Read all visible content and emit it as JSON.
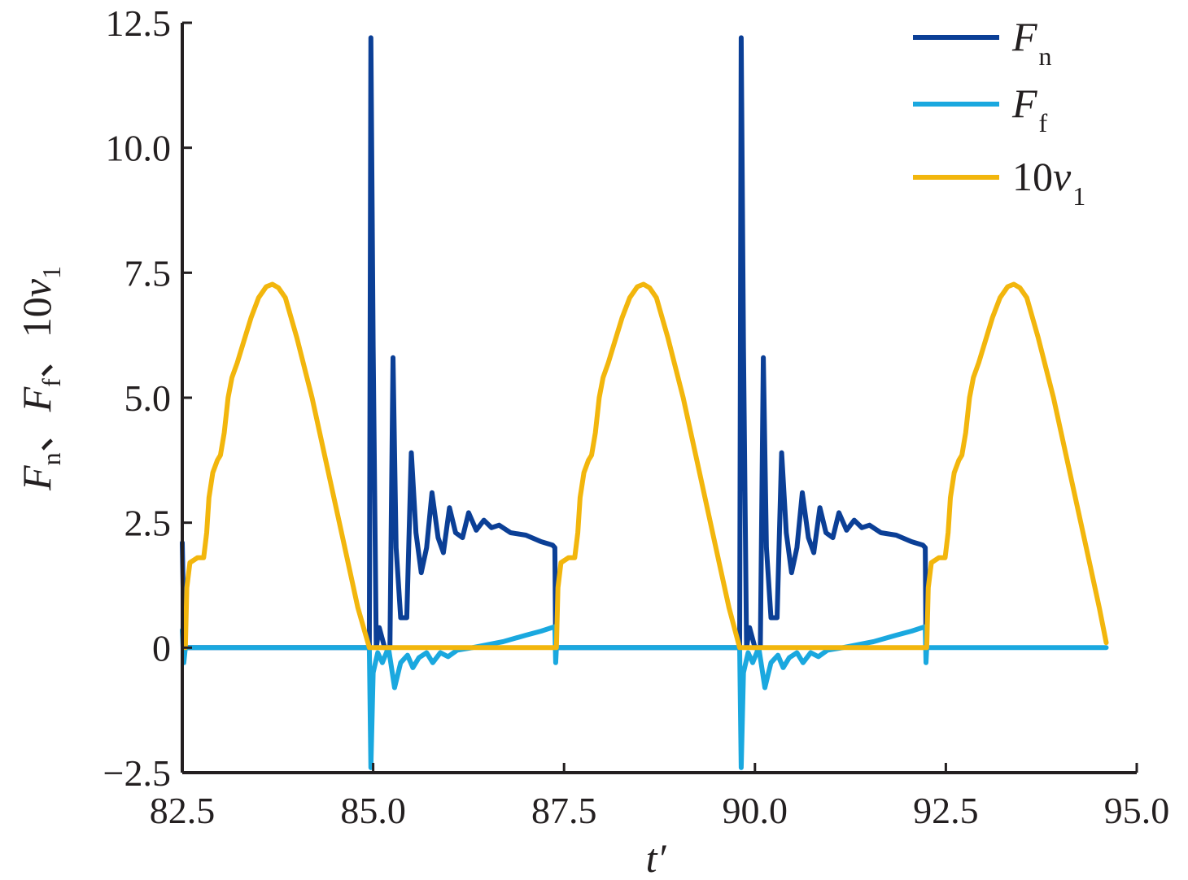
{
  "chart_data": {
    "type": "line",
    "xlabel": "t′",
    "ylabel": {
      "parts": [
        "F",
        "n",
        "、",
        "F",
        "f",
        "、",
        "10",
        "v",
        "1"
      ]
    },
    "xlim": [
      82.5,
      95.0
    ],
    "ylim": [
      -2.5,
      12.5
    ],
    "xticks": [
      "82.5",
      "85.0",
      "87.5",
      "90.0",
      "92.5",
      "95.0"
    ],
    "xtick_values": [
      82.5,
      85.0,
      87.5,
      90.0,
      92.5,
      95.0
    ],
    "yticks": [
      "−2.5",
      "0",
      "2.5",
      "5.0",
      "7.5",
      "10.0",
      "12.5"
    ],
    "ytick_values": [
      -2.5,
      0,
      2.5,
      5.0,
      7.5,
      10.0,
      12.5
    ],
    "legend_position": "top-right",
    "series": [
      {
        "name": "Fn",
        "label_main": "F",
        "label_sub": "n",
        "color": "#0b3f96",
        "points": [
          [
            82.5,
            2.1
          ],
          [
            82.52,
            0.4
          ],
          [
            82.54,
            0
          ],
          [
            84.95,
            0
          ],
          [
            84.97,
            12.2
          ],
          [
            85.0,
            6.0
          ],
          [
            85.04,
            0
          ],
          [
            85.08,
            0.4
          ],
          [
            85.15,
            0
          ],
          [
            85.22,
            0
          ],
          [
            85.26,
            5.8
          ],
          [
            85.3,
            2.0
          ],
          [
            85.36,
            0.6
          ],
          [
            85.44,
            0.6
          ],
          [
            85.5,
            3.9
          ],
          [
            85.56,
            2.3
          ],
          [
            85.63,
            1.5
          ],
          [
            85.7,
            2.0
          ],
          [
            85.77,
            3.1
          ],
          [
            85.85,
            2.2
          ],
          [
            85.92,
            1.9
          ],
          [
            86.0,
            2.8
          ],
          [
            86.08,
            2.3
          ],
          [
            86.17,
            2.2
          ],
          [
            86.25,
            2.7
          ],
          [
            86.35,
            2.35
          ],
          [
            86.45,
            2.55
          ],
          [
            86.55,
            2.4
          ],
          [
            86.65,
            2.45
          ],
          [
            86.8,
            2.3
          ],
          [
            87.0,
            2.25
          ],
          [
            87.2,
            2.12
          ],
          [
            87.35,
            2.05
          ],
          [
            87.38,
            2.0
          ],
          [
            87.39,
            0
          ],
          [
            89.8,
            0
          ],
          [
            89.82,
            12.2
          ],
          [
            89.85,
            6.0
          ],
          [
            89.89,
            0
          ],
          [
            89.93,
            0.4
          ],
          [
            90.0,
            0
          ],
          [
            90.07,
            0
          ],
          [
            90.11,
            5.8
          ],
          [
            90.15,
            2.0
          ],
          [
            90.21,
            0.6
          ],
          [
            90.29,
            0.6
          ],
          [
            90.35,
            3.9
          ],
          [
            90.41,
            2.3
          ],
          [
            90.48,
            1.5
          ],
          [
            90.55,
            2.0
          ],
          [
            90.62,
            3.1
          ],
          [
            90.7,
            2.2
          ],
          [
            90.77,
            1.9
          ],
          [
            90.85,
            2.8
          ],
          [
            90.93,
            2.3
          ],
          [
            91.02,
            2.2
          ],
          [
            91.1,
            2.7
          ],
          [
            91.2,
            2.35
          ],
          [
            91.3,
            2.55
          ],
          [
            91.4,
            2.4
          ],
          [
            91.5,
            2.45
          ],
          [
            91.65,
            2.3
          ],
          [
            91.85,
            2.25
          ],
          [
            92.05,
            2.12
          ],
          [
            92.2,
            2.05
          ],
          [
            92.23,
            2.0
          ],
          [
            92.24,
            0
          ]
        ]
      },
      {
        "name": "Ff",
        "label_main": "F",
        "label_sub": "f",
        "color": "#1aa8df",
        "points": [
          [
            82.5,
            0.35
          ],
          [
            82.52,
            -0.3
          ],
          [
            82.54,
            0
          ],
          [
            84.95,
            0
          ],
          [
            84.97,
            -2.4
          ],
          [
            85.0,
            -0.5
          ],
          [
            85.06,
            -0.1
          ],
          [
            85.12,
            -0.3
          ],
          [
            85.2,
            0
          ],
          [
            85.28,
            -0.8
          ],
          [
            85.36,
            -0.3
          ],
          [
            85.45,
            -0.15
          ],
          [
            85.52,
            -0.4
          ],
          [
            85.6,
            -0.2
          ],
          [
            85.7,
            -0.1
          ],
          [
            85.78,
            -0.3
          ],
          [
            85.88,
            -0.1
          ],
          [
            85.98,
            -0.18
          ],
          [
            86.1,
            -0.05
          ],
          [
            86.3,
            0
          ],
          [
            86.7,
            0.12
          ],
          [
            87.0,
            0.25
          ],
          [
            87.2,
            0.33
          ],
          [
            87.38,
            0.42
          ],
          [
            87.39,
            -0.3
          ],
          [
            87.4,
            0
          ],
          [
            89.8,
            0
          ],
          [
            89.82,
            -2.4
          ],
          [
            89.85,
            -0.5
          ],
          [
            89.91,
            -0.1
          ],
          [
            89.97,
            -0.3
          ],
          [
            90.05,
            0
          ],
          [
            90.13,
            -0.8
          ],
          [
            90.21,
            -0.3
          ],
          [
            90.3,
            -0.15
          ],
          [
            90.37,
            -0.4
          ],
          [
            90.45,
            -0.2
          ],
          [
            90.55,
            -0.1
          ],
          [
            90.63,
            -0.3
          ],
          [
            90.73,
            -0.1
          ],
          [
            90.83,
            -0.18
          ],
          [
            90.95,
            -0.05
          ],
          [
            91.15,
            0
          ],
          [
            91.55,
            0.12
          ],
          [
            91.85,
            0.25
          ],
          [
            92.05,
            0.33
          ],
          [
            92.23,
            0.42
          ],
          [
            92.24,
            -0.3
          ],
          [
            92.25,
            0
          ],
          [
            94.6,
            0
          ]
        ]
      },
      {
        "name": "10v1",
        "label_main": "10v",
        "label_sub": "1",
        "color": "#f2b60d",
        "points": [
          [
            82.54,
            0
          ],
          [
            82.56,
            1.2
          ],
          [
            82.6,
            1.7
          ],
          [
            82.7,
            1.8
          ],
          [
            82.78,
            1.8
          ],
          [
            82.82,
            2.3
          ],
          [
            82.85,
            3.0
          ],
          [
            82.9,
            3.5
          ],
          [
            82.96,
            3.75
          ],
          [
            83.0,
            3.85
          ],
          [
            83.05,
            4.3
          ],
          [
            83.1,
            5.0
          ],
          [
            83.15,
            5.4
          ],
          [
            83.22,
            5.7
          ],
          [
            83.3,
            6.1
          ],
          [
            83.4,
            6.6
          ],
          [
            83.5,
            7.0
          ],
          [
            83.6,
            7.22
          ],
          [
            83.68,
            7.27
          ],
          [
            83.76,
            7.2
          ],
          [
            83.85,
            7.0
          ],
          [
            84.0,
            6.2
          ],
          [
            84.2,
            5.0
          ],
          [
            84.4,
            3.6
          ],
          [
            84.6,
            2.2
          ],
          [
            84.8,
            0.8
          ],
          [
            84.95,
            0
          ],
          [
            87.4,
            0
          ],
          [
            87.42,
            1.2
          ],
          [
            87.46,
            1.7
          ],
          [
            87.56,
            1.8
          ],
          [
            87.64,
            1.8
          ],
          [
            87.68,
            2.3
          ],
          [
            87.71,
            3.0
          ],
          [
            87.76,
            3.5
          ],
          [
            87.82,
            3.75
          ],
          [
            87.86,
            3.85
          ],
          [
            87.91,
            4.3
          ],
          [
            87.96,
            5.0
          ],
          [
            88.01,
            5.4
          ],
          [
            88.08,
            5.7
          ],
          [
            88.16,
            6.1
          ],
          [
            88.26,
            6.6
          ],
          [
            88.36,
            7.0
          ],
          [
            88.46,
            7.22
          ],
          [
            88.54,
            7.27
          ],
          [
            88.62,
            7.2
          ],
          [
            88.71,
            7.0
          ],
          [
            88.86,
            6.2
          ],
          [
            89.06,
            5.0
          ],
          [
            89.26,
            3.6
          ],
          [
            89.46,
            2.2
          ],
          [
            89.66,
            0.8
          ],
          [
            89.8,
            0
          ],
          [
            92.25,
            0
          ],
          [
            92.27,
            1.2
          ],
          [
            92.31,
            1.7
          ],
          [
            92.41,
            1.8
          ],
          [
            92.49,
            1.8
          ],
          [
            92.53,
            2.3
          ],
          [
            92.56,
            3.0
          ],
          [
            92.61,
            3.5
          ],
          [
            92.67,
            3.75
          ],
          [
            92.71,
            3.85
          ],
          [
            92.76,
            4.3
          ],
          [
            92.81,
            5.0
          ],
          [
            92.86,
            5.4
          ],
          [
            92.93,
            5.7
          ],
          [
            93.01,
            6.1
          ],
          [
            93.11,
            6.6
          ],
          [
            93.21,
            7.0
          ],
          [
            93.31,
            7.22
          ],
          [
            93.39,
            7.27
          ],
          [
            93.47,
            7.2
          ],
          [
            93.56,
            7.0
          ],
          [
            93.71,
            6.2
          ],
          [
            93.91,
            5.0
          ],
          [
            94.11,
            3.6
          ],
          [
            94.31,
            2.2
          ],
          [
            94.51,
            0.8
          ],
          [
            94.6,
            0.1
          ]
        ]
      }
    ]
  }
}
